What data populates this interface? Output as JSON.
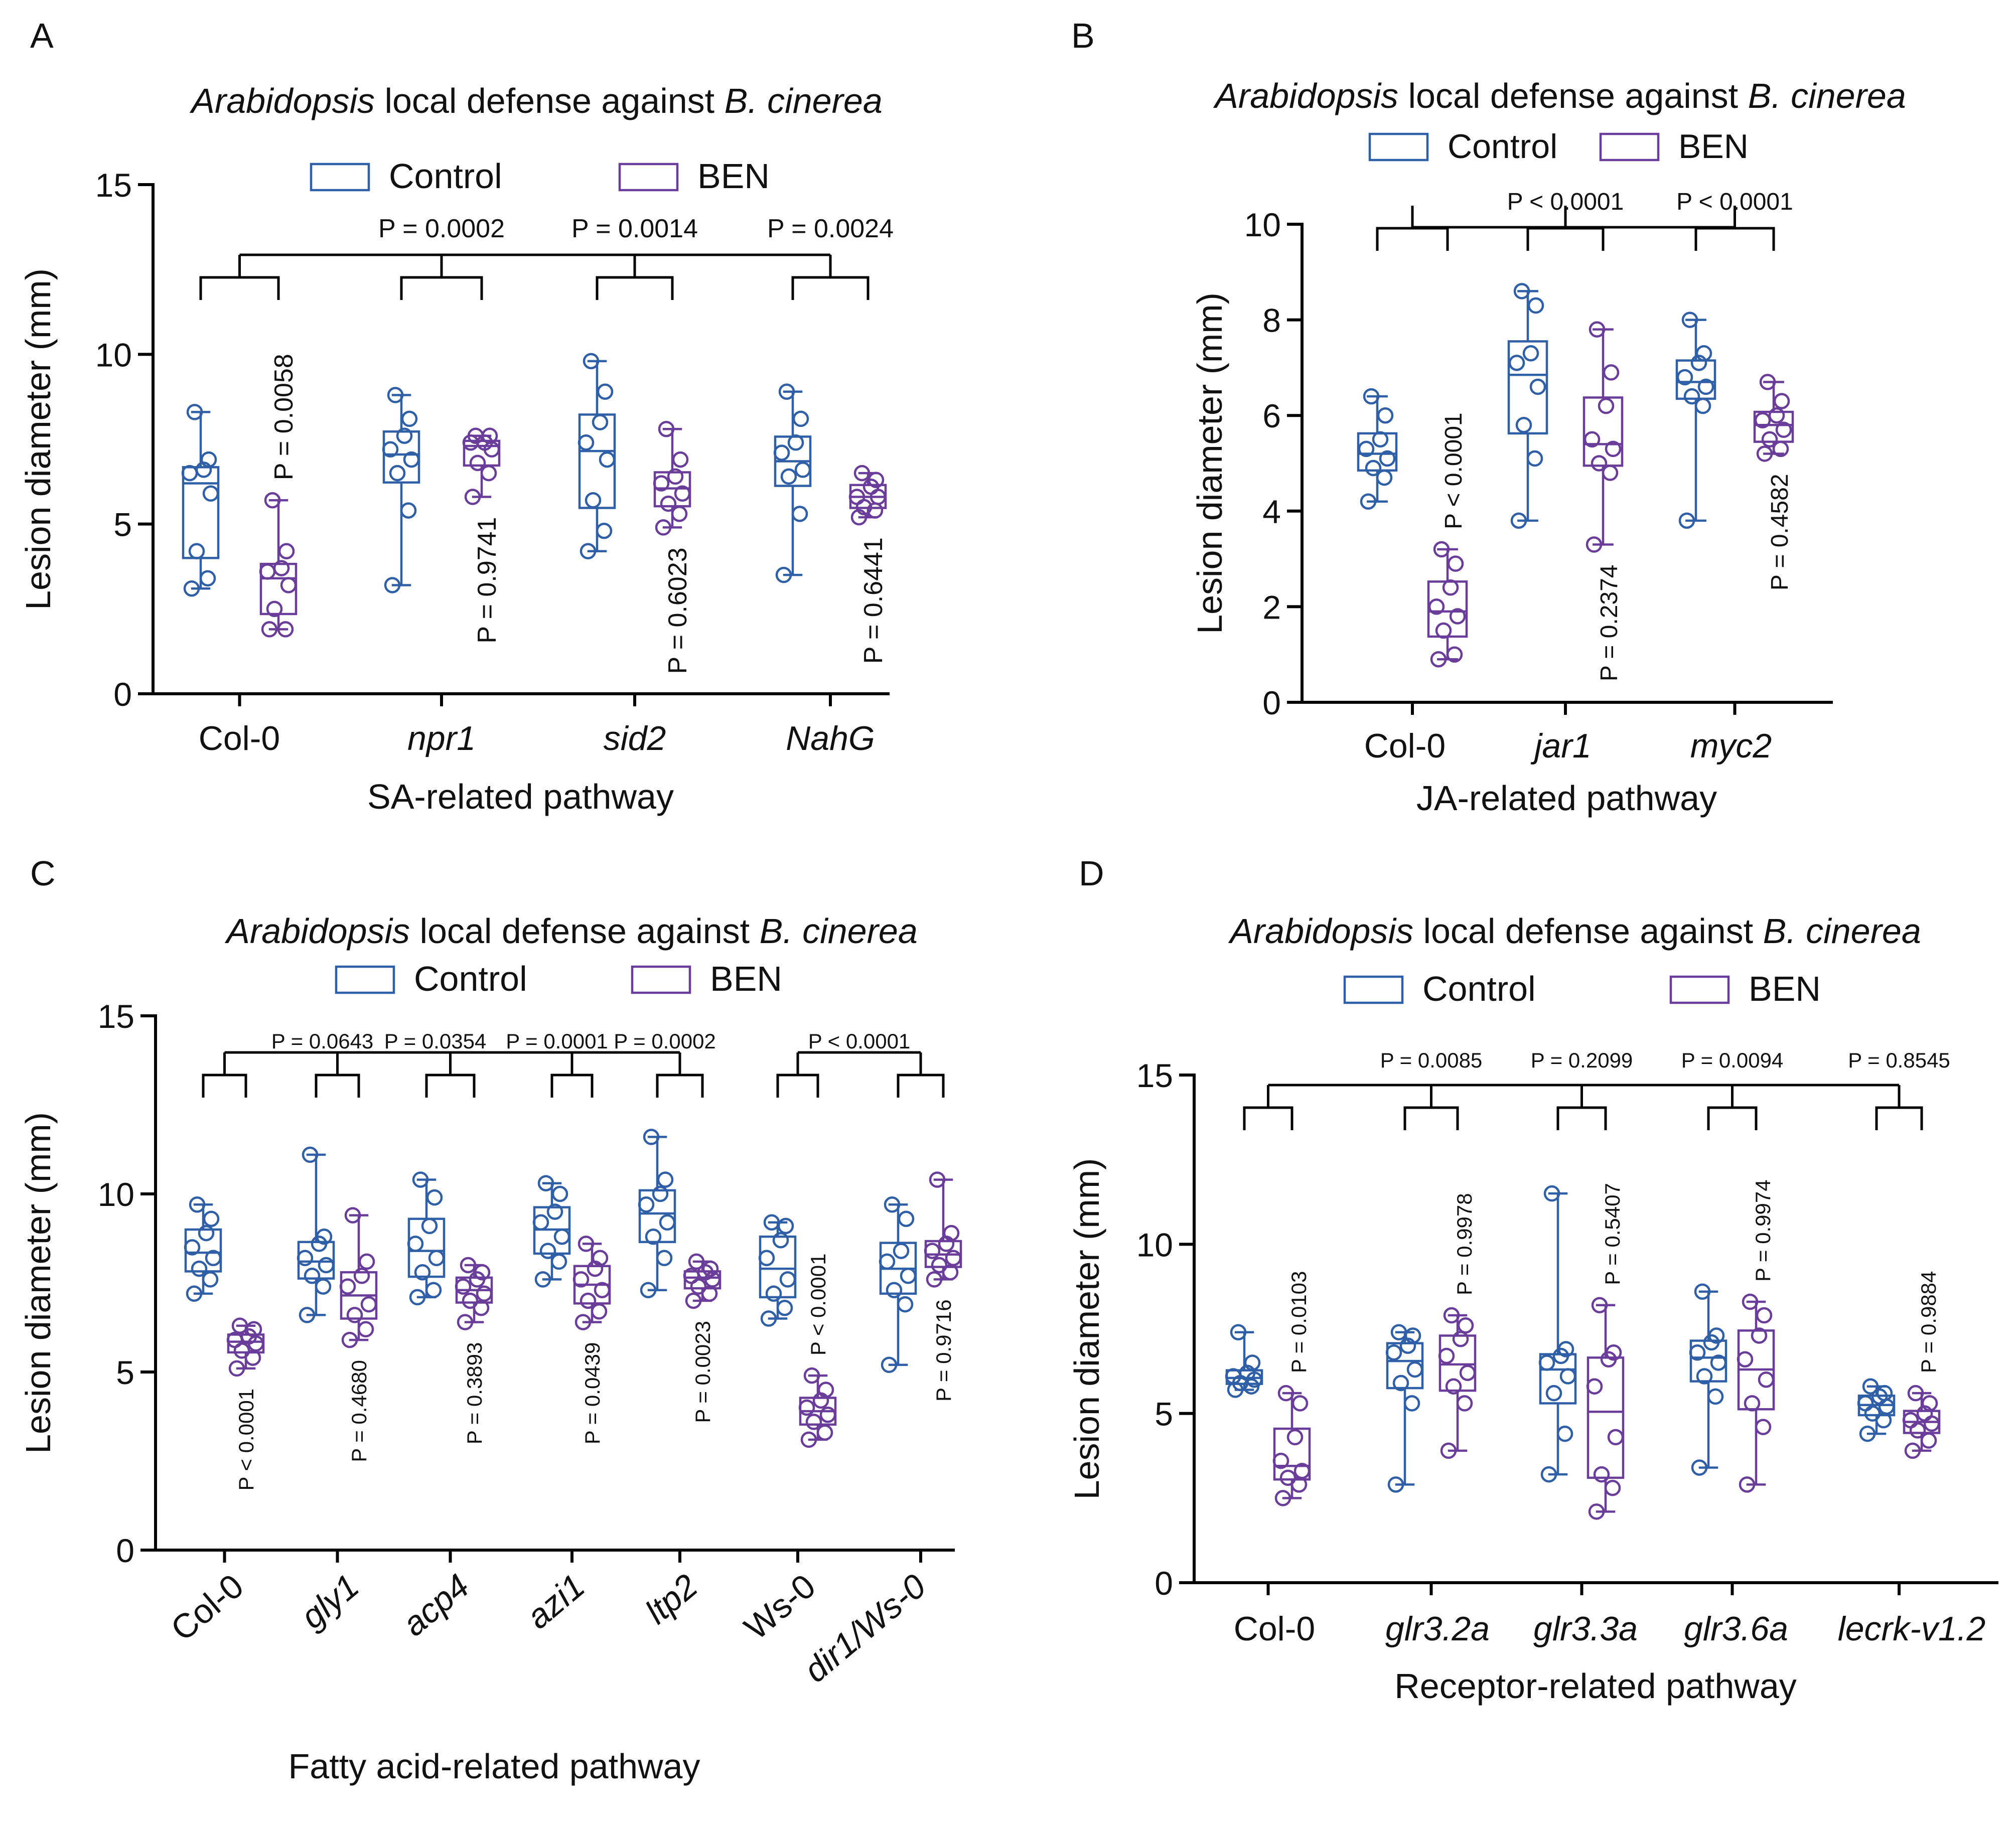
{
  "colors": {
    "control": "#2f5fa6",
    "ben": "#6a3d9a"
  },
  "chart_data": [
    {
      "panel": "A",
      "type": "box",
      "title": {
        "italic": "Arabidopsis",
        "mid": " local defense against ",
        "italic2": "B. cinerea"
      },
      "xlabel": "SA-related pathway",
      "ylabel": "Lesion diameter (mm)",
      "ylim": [
        0,
        15
      ],
      "yticks": [
        0,
        5,
        10,
        15
      ],
      "legend": [
        "Control",
        "BEN"
      ],
      "categories": [
        {
          "label": "Col-0",
          "italic": false
        },
        {
          "label": "npr1",
          "italic": true
        },
        {
          "label": "sid2",
          "italic": true
        },
        {
          "label": "NahG",
          "italic": true
        }
      ],
      "series": [
        {
          "name": "Control",
          "groups": [
            [
              3.1,
              3.4,
              4.2,
              5.9,
              6.5,
              6.6,
              6.9,
              8.3
            ],
            [
              3.2,
              5.4,
              6.5,
              6.9,
              7.2,
              7.6,
              8.1,
              8.8
            ],
            [
              4.2,
              4.8,
              5.7,
              6.9,
              7.4,
              8.0,
              8.9,
              9.8
            ],
            [
              3.5,
              5.3,
              6.4,
              6.6,
              7.1,
              7.4,
              8.1,
              8.9
            ]
          ]
        },
        {
          "name": "BEN",
          "groups": [
            [
              1.9,
              1.9,
              2.5,
              3.2,
              3.6,
              3.7,
              4.2,
              5.7
            ],
            [
              5.8,
              6.5,
              6.8,
              7.2,
              7.4,
              7.4,
              7.6,
              7.6
            ],
            [
              4.9,
              5.3,
              5.6,
              5.9,
              6.2,
              6.4,
              6.9,
              7.8
            ],
            [
              5.2,
              5.4,
              5.5,
              5.8,
              5.8,
              6.1,
              6.3,
              6.5
            ]
          ]
        }
      ],
      "within_p": [
        {
          "text": "P = 0.0058",
          "pos": "above"
        },
        {
          "text": "P = 0.9741",
          "pos": "below"
        },
        {
          "text": "P = 0.6023",
          "pos": "below"
        },
        {
          "text": "P = 0.6441",
          "pos": "below"
        }
      ],
      "between_p": [
        "",
        "P = 0.0002",
        "P = 0.0014",
        "P = 0.0024"
      ]
    },
    {
      "panel": "B",
      "type": "box",
      "title": {
        "italic": "Arabidopsis",
        "mid": " local defense against ",
        "italic2": "B. cinerea"
      },
      "xlabel": "JA-related pathway",
      "ylabel": "Lesion diameter (mm)",
      "ylim": [
        0,
        10
      ],
      "yticks": [
        0,
        2,
        4,
        6,
        8,
        10
      ],
      "legend": [
        "Control",
        "BEN"
      ],
      "categories": [
        {
          "label": "Col-0",
          "italic": false
        },
        {
          "label": "jar1",
          "italic": true
        },
        {
          "label": "myc2",
          "italic": true
        }
      ],
      "series": [
        {
          "name": "Control",
          "groups": [
            [
              4.2,
              4.7,
              4.9,
              5.1,
              5.3,
              5.5,
              6.0,
              6.4
            ],
            [
              3.8,
              5.1,
              5.8,
              6.6,
              7.1,
              7.3,
              8.3,
              8.6
            ],
            [
              3.8,
              6.2,
              6.4,
              6.6,
              6.8,
              7.1,
              7.3,
              8.0
            ]
          ]
        },
        {
          "name": "BEN",
          "groups": [
            [
              0.9,
              1.0,
              1.5,
              1.8,
              2.0,
              2.4,
              2.9,
              3.2
            ],
            [
              3.3,
              4.8,
              5.0,
              5.3,
              5.5,
              6.2,
              6.9,
              7.8
            ],
            [
              5.2,
              5.3,
              5.5,
              5.7,
              5.9,
              6.0,
              6.3,
              6.7
            ]
          ]
        }
      ],
      "within_p": [
        {
          "text": "P < 0.0001",
          "pos": "above"
        },
        {
          "text": "P = 0.2374",
          "pos": "below"
        },
        {
          "text": "P = 0.4582",
          "pos": "below"
        }
      ],
      "between_p": [
        "",
        "P < 0.0001",
        "P < 0.0001"
      ]
    },
    {
      "panel": "C",
      "type": "box",
      "title": {
        "italic": "Arabidopsis",
        "mid": " local defense against ",
        "italic2": "B. cinerea"
      },
      "xlabel": "Fatty acid-related pathway",
      "ylabel": "Lesion diameter (mm)",
      "ylim": [
        0,
        15
      ],
      "yticks": [
        0,
        5,
        10,
        15
      ],
      "legend": [
        "Control",
        "BEN"
      ],
      "categories": [
        {
          "label": "Col-0",
          "italic": false
        },
        {
          "label": "gly1",
          "italic": true
        },
        {
          "label": "acp4",
          "italic": true
        },
        {
          "label": "azi1",
          "italic": true
        },
        {
          "label": "ltp2",
          "italic": true
        },
        {
          "label": "Ws-0",
          "italic": false
        },
        {
          "label": "dir1/Ws-0",
          "italic": true
        }
      ],
      "series": [
        {
          "name": "Control",
          "groups": [
            [
              7.2,
              7.6,
              7.9,
              8.2,
              8.5,
              8.9,
              9.3,
              9.7
            ],
            [
              6.6,
              7.4,
              7.7,
              8.0,
              8.2,
              8.6,
              8.8,
              11.1
            ],
            [
              7.1,
              7.3,
              7.8,
              8.2,
              8.6,
              9.1,
              9.9,
              10.4
            ],
            [
              7.6,
              8.1,
              8.4,
              8.8,
              9.2,
              9.5,
              10.0,
              10.3
            ],
            [
              7.3,
              8.2,
              8.8,
              9.2,
              9.7,
              10.0,
              10.4,
              11.6
            ],
            [
              6.5,
              6.8,
              7.2,
              7.6,
              8.2,
              8.7,
              9.1,
              9.2
            ],
            [
              5.2,
              6.9,
              7.3,
              7.7,
              8.1,
              8.4,
              9.3,
              9.7
            ]
          ]
        },
        {
          "name": "BEN",
          "groups": [
            [
              5.1,
              5.4,
              5.6,
              5.8,
              5.9,
              6.0,
              6.2,
              6.3
            ],
            [
              5.9,
              6.2,
              6.6,
              6.9,
              7.4,
              7.7,
              8.1,
              9.4
            ],
            [
              6.4,
              6.8,
              7.0,
              7.2,
              7.4,
              7.6,
              7.8,
              8.0
            ],
            [
              6.4,
              6.7,
              7.0,
              7.3,
              7.6,
              7.9,
              8.2,
              8.6
            ],
            [
              7.0,
              7.2,
              7.4,
              7.6,
              7.7,
              7.8,
              7.9,
              8.1
            ],
            [
              3.1,
              3.3,
              3.6,
              3.8,
              4.0,
              4.2,
              4.5,
              4.9
            ],
            [
              7.6,
              7.8,
              8.0,
              8.2,
              8.4,
              8.6,
              8.9,
              10.4
            ]
          ]
        }
      ],
      "within_p": [
        {
          "text": "P < 0.0001",
          "pos": "below"
        },
        {
          "text": "P = 0.4680",
          "pos": "below"
        },
        {
          "text": "P = 0.3893",
          "pos": "below"
        },
        {
          "text": "P = 0.0439",
          "pos": "below"
        },
        {
          "text": "P = 0.0023",
          "pos": "below"
        },
        {
          "text": "P < 0.0001",
          "pos": "above"
        },
        {
          "text": "P = 0.9716",
          "pos": "below"
        }
      ],
      "between_p": [
        "",
        "P = 0.0643",
        "P = 0.0354",
        "P = 0.0001",
        "P = 0.0002",
        "",
        ""
      ],
      "between_p_ws": "P < 0.0001"
    },
    {
      "panel": "D",
      "type": "box",
      "title": {
        "italic": "Arabidopsis",
        "mid": " local defense against ",
        "italic2": "B. cinerea"
      },
      "xlabel": "Receptor-related pathway",
      "ylabel": "Lesion diameter (mm)",
      "ylim": [
        0,
        15
      ],
      "yticks": [
        0,
        5,
        10,
        15
      ],
      "legend": [
        "Control",
        "BEN"
      ],
      "categories": [
        {
          "label": "Col-0",
          "italic": false
        },
        {
          "label": "glr3.2a",
          "italic": true
        },
        {
          "label": "glr3.3a",
          "italic": true
        },
        {
          "label": "glr3.6a",
          "italic": true
        },
        {
          "label": "lecrk-v1.2",
          "italic": true
        }
      ],
      "series": [
        {
          "name": "Control",
          "groups": [
            [
              5.7,
              5.8,
              5.9,
              6.0,
              6.1,
              6.2,
              6.5,
              7.4
            ],
            [
              2.9,
              5.3,
              5.9,
              6.3,
              6.8,
              7.0,
              7.3,
              7.4
            ],
            [
              3.2,
              4.4,
              5.6,
              6.1,
              6.5,
              6.7,
              6.9,
              11.5
            ],
            [
              3.4,
              5.5,
              6.1,
              6.5,
              6.8,
              7.1,
              7.3,
              8.6
            ],
            [
              4.4,
              4.8,
              5.0,
              5.2,
              5.3,
              5.5,
              5.6,
              5.8
            ]
          ]
        },
        {
          "name": "BEN",
          "groups": [
            [
              2.5,
              2.9,
              3.1,
              3.3,
              3.6,
              4.3,
              5.3,
              5.6
            ],
            [
              3.9,
              5.3,
              5.8,
              6.2,
              6.7,
              7.2,
              7.6,
              7.9
            ],
            [
              2.1,
              2.8,
              3.2,
              4.3,
              5.8,
              6.6,
              6.8,
              8.2
            ],
            [
              2.9,
              4.6,
              5.3,
              6.0,
              6.6,
              7.3,
              7.9,
              8.3
            ],
            [
              3.9,
              4.2,
              4.5,
              4.7,
              4.8,
              5.0,
              5.3,
              5.6
            ]
          ]
        }
      ],
      "within_p": [
        {
          "text": "P = 0.0103",
          "pos": "above"
        },
        {
          "text": "P = 0.9978",
          "pos": "above"
        },
        {
          "text": "P = 0.5407",
          "pos": "above"
        },
        {
          "text": "P = 0.9974",
          "pos": "above"
        },
        {
          "text": "P = 0.9884",
          "pos": "above"
        }
      ],
      "between_p": [
        "",
        "P = 0.0085",
        "P = 0.2099",
        "P = 0.0094",
        "P = 0.8545"
      ]
    }
  ]
}
